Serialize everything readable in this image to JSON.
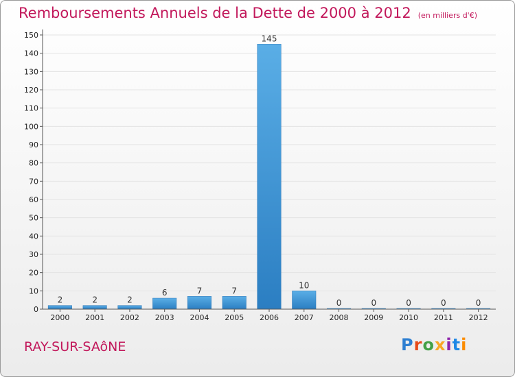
{
  "header": {
    "title": "Remboursements Annuels de la Dette de 2000 à 2012",
    "unit": "(en milliers d'€)"
  },
  "commune": "RAY-SUR-SAôNE",
  "logo": {
    "text": "Proxiti"
  },
  "colors": {
    "title": "#c2185b",
    "bar_top": "#5aaee6",
    "bar_bottom": "#2b7ec2",
    "grid": "#e3e3e3"
  },
  "chart_data": {
    "type": "bar",
    "title": "Remboursements Annuels de la Dette de 2000 à 2012",
    "ylabel": "en milliers d'€",
    "xlabel": "",
    "categories": [
      "2000",
      "2001",
      "2002",
      "2003",
      "2004",
      "2005",
      "2006",
      "2007",
      "2008",
      "2009",
      "2010",
      "2011",
      "2012"
    ],
    "values": [
      2,
      2,
      2,
      6,
      7,
      7,
      145,
      10,
      0,
      0,
      0,
      0,
      0
    ],
    "data_labels": [
      "2",
      "2",
      "2",
      "6",
      "7",
      "7",
      "145",
      "10",
      "0",
      "0",
      "0",
      "0",
      "0"
    ],
    "ylim": [
      0,
      150
    ],
    "yticks": [
      0,
      10,
      20,
      30,
      40,
      50,
      60,
      70,
      80,
      90,
      100,
      110,
      120,
      130,
      140,
      150
    ],
    "grid": true
  }
}
